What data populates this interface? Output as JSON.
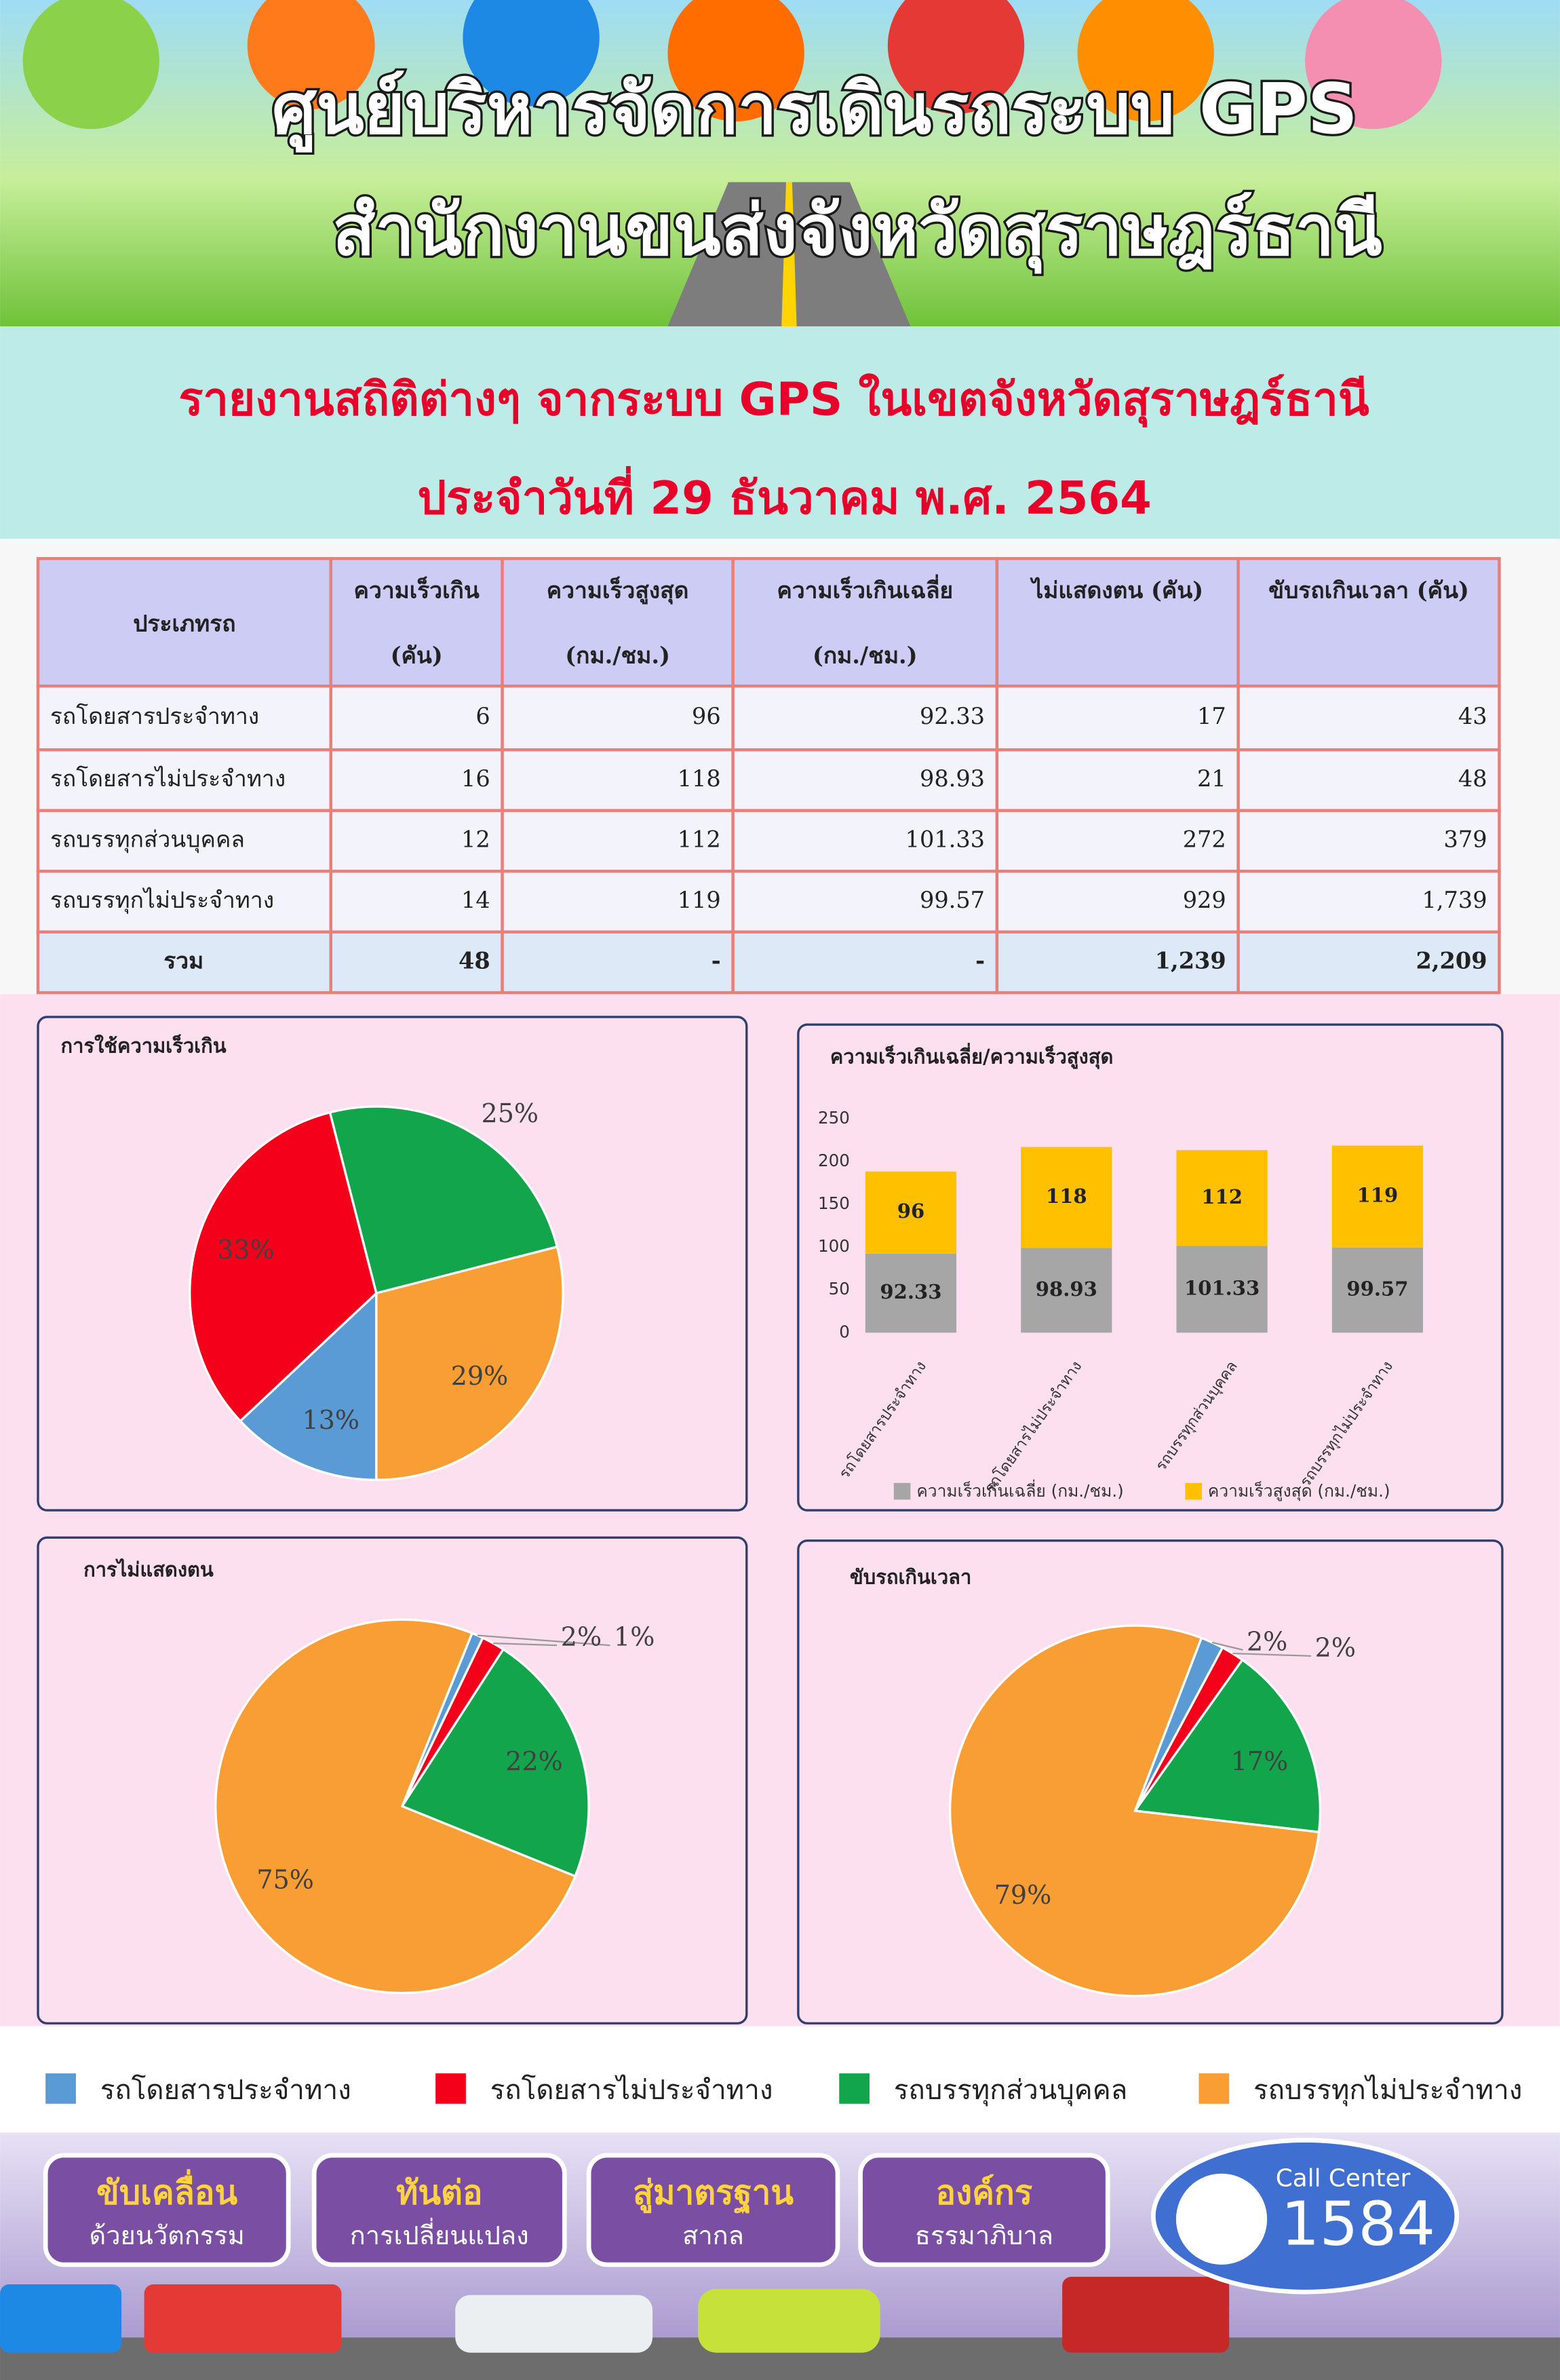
{
  "header": {
    "title_lines": [
      "ศูนย์บริหารจัดการเดินรถระบบ GPS",
      "สำนักงานขนส่งจังหวัดสุราษฎร์ธานี"
    ]
  },
  "report": {
    "lines": [
      "รายงานสถิติต่างๆ จากระบบ GPS ในเขตจังหวัดสุราษฎร์ธานี",
      "ประจำวันที่ 29 ธันวาคม พ.ศ. 2564"
    ]
  },
  "table": {
    "header": [
      [
        "ประเภทรถ"
      ],
      [
        "ความเร็วเกิน",
        "(คัน)"
      ],
      [
        "ความเร็วสูงสุด",
        "(กม./ชม.)"
      ],
      [
        "ความเร็วเกินเฉลี่ย",
        "(กม./ชม.)"
      ],
      [
        "ไม่แสดงตน (คัน)"
      ],
      [
        "ขับรถเกินเวลา (คัน)"
      ]
    ],
    "rows": [
      [
        "รถโดยสารประจำทาง",
        "6",
        "96",
        "92.33",
        "17",
        "43"
      ],
      [
        "รถโดยสารไม่ประจำทาง",
        "16",
        "118",
        "98.93",
        "21",
        "48"
      ],
      [
        "รถบรรทุกส่วนบุคคล",
        "12",
        "112",
        "101.33",
        "272",
        "379"
      ],
      [
        "รถบรรทุกไม่ประจำทาง",
        "14",
        "119",
        "99.57",
        "929",
        "1,739"
      ]
    ],
    "total": [
      "รวม",
      "48",
      "-",
      "-",
      "1,239",
      "2,209"
    ]
  },
  "chart_data": [
    {
      "type": "pie",
      "title": "การใช้ความเร็วเกิน",
      "values": [
        13,
        33,
        25,
        29
      ],
      "value_labels": [
        "13%",
        "33%",
        "25%",
        "29%"
      ],
      "colors": [
        "#5b9bd5",
        "#f4001b",
        "#13a54c",
        "#f99d35"
      ]
    },
    {
      "type": "bar",
      "stacked": true,
      "title": "ความเร็วเกินเฉลี่ย/ความเร็วสูงสุด",
      "categories": [
        "รถโดยสารประจำทาง",
        "รถโดยสารไม่ประจำทาง",
        "รถบรรทุกส่วนบุคคล",
        "รถบรรทุกไม่ประจำทาง"
      ],
      "series": [
        {
          "name": "ความเร็วเกินเฉลี่ย (กม./ชม.)",
          "color": "#a6a6a6",
          "values": [
            92.33,
            98.93,
            101.33,
            99.57
          ]
        },
        {
          "name": "ความเร็วสูงสุด (กม./ชม.)",
          "color": "#ffc000",
          "values": [
            96,
            118,
            112,
            119
          ]
        }
      ],
      "ylim": [
        0,
        250
      ],
      "yticks": [
        0,
        50,
        100,
        150,
        200,
        250
      ]
    },
    {
      "type": "pie",
      "title": "การไม่แสดงตน",
      "values": [
        1,
        2,
        22,
        75
      ],
      "value_labels": [
        "1%",
        "2%",
        "22%",
        "75%"
      ],
      "colors": [
        "#5b9bd5",
        "#f4001b",
        "#13a54c",
        "#f99d35"
      ]
    },
    {
      "type": "pie",
      "title": "ขับรถเกินเวลา",
      "values": [
        2,
        2,
        17,
        79
      ],
      "value_labels": [
        "2%",
        "2%",
        "17%",
        "79%"
      ],
      "colors": [
        "#5b9bd5",
        "#f4001b",
        "#13a54c",
        "#f99d35"
      ]
    }
  ],
  "legend": [
    {
      "name": "รถโดยสารประจำทาง",
      "color": "#5b9bd5"
    },
    {
      "name": "รถโดยสารไม่ประจำทาง",
      "color": "#f4001b"
    },
    {
      "name": "รถบรรทุกส่วนบุคคล",
      "color": "#13a54c"
    },
    {
      "name": "รถบรรทุกไม่ประจำทาง",
      "color": "#f99d35"
    }
  ],
  "footer": {
    "badges": [
      [
        "ขับเคลื่อน",
        "ด้วยนวัตกรรม"
      ],
      [
        "ทันต่อ",
        "การเปลี่ยนแปลง"
      ],
      [
        "สู่มาตรฐาน",
        "สากล"
      ],
      [
        "องค์กร",
        "ธรรมาภิบาล"
      ]
    ],
    "call_center": {
      "label": "Call Center",
      "number": "1584"
    }
  }
}
